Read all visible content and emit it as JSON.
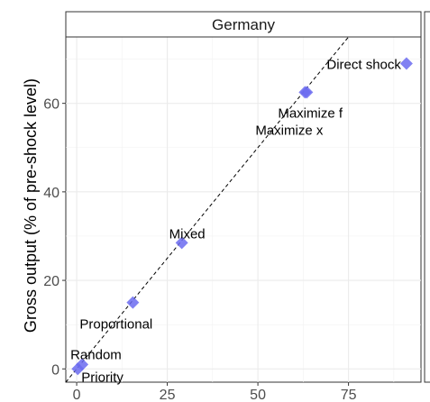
{
  "chart_data": {
    "type": "scatter",
    "panel": "Germany",
    "xlabel": "",
    "ylabel": "Gross output (% of pre-shock level)",
    "xlim": [
      -3,
      95
    ],
    "ylim": [
      -3,
      75
    ],
    "xticks": [
      0,
      25,
      50,
      75
    ],
    "yticks": [
      0,
      20,
      40,
      60
    ],
    "reference_line": {
      "type": "identity",
      "style": "dashed"
    },
    "grid": true,
    "marker": "diamond",
    "marker_color": "#6b6bf0",
    "points": [
      {
        "label": "Direct shock",
        "x": 91,
        "y": 69
      },
      {
        "label": "Maximize f",
        "x": 63.5,
        "y": 62.5
      },
      {
        "label": "Maximize x",
        "x": 63,
        "y": 62.5
      },
      {
        "label": "Mixed",
        "x": 29,
        "y": 28.5
      },
      {
        "label": "Proportional",
        "x": 15.5,
        "y": 15
      },
      {
        "label": "Random",
        "x": 1.5,
        "y": 1
      },
      {
        "label": "Priority",
        "x": 0.3,
        "y": 0
      }
    ]
  }
}
